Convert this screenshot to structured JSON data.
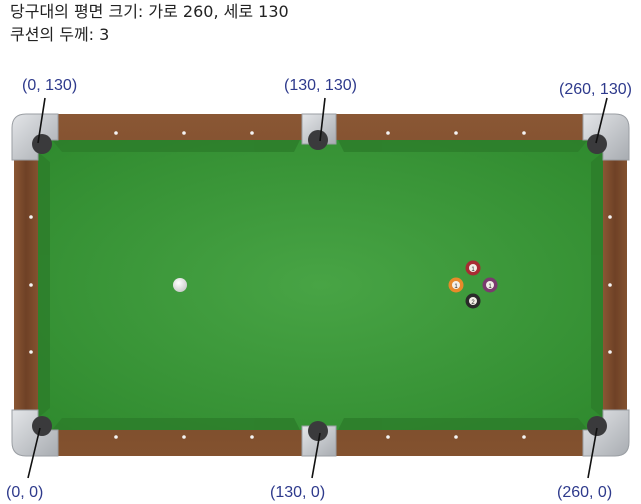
{
  "header": {
    "line1": "당구대의 평면 크기: 가로 260, 세로 130",
    "line2": "쿠션의 두께: 3"
  },
  "pocket_labels": {
    "top_left": "(0, 130)",
    "top_middle": "(130, 130)",
    "top_right": "(260, 130)",
    "bottom_left": "(0, 0)",
    "bottom_middle": "(130, 0)",
    "bottom_right": "(260, 0)"
  },
  "balls": {
    "top": "1",
    "left": "1",
    "right": "1",
    "bottom": "2"
  },
  "colors": {
    "felt": "#3e9a3b",
    "rail_wood": "#7a4b2c",
    "corner_metal": "#c9ccd0",
    "label": "#2e3a8c"
  }
}
